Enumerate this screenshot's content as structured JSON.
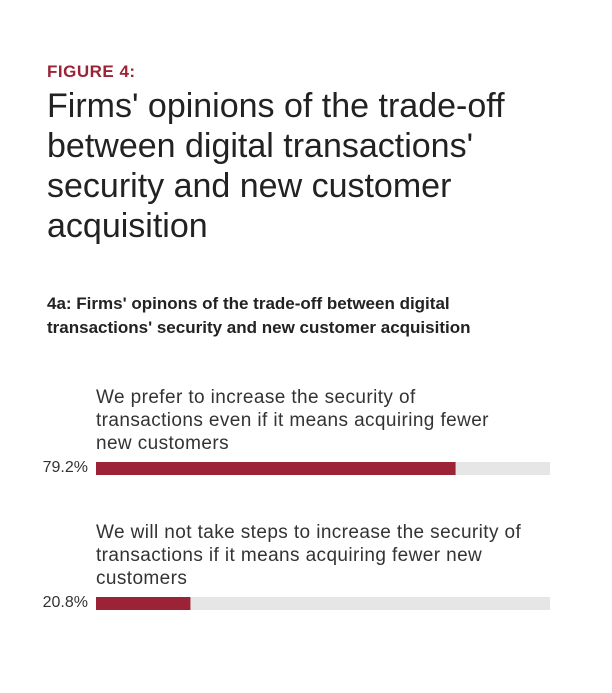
{
  "chart_data": {
    "type": "bar",
    "figure_label": "FIGURE 4:",
    "title": "Firms' opinions of the trade-off between digital transactions' security and new customer acquisition",
    "subtitle": "4a: Firms' opinons of the trade-off between digital transactions' security and new customer acquisition",
    "categories": [
      "We prefer to increase the security of transactions even if it means acquiring fewer new customers",
      "We will not take steps to increase the security of transactions if it means acquiring fewer new customers"
    ],
    "values": [
      79.2,
      20.8
    ],
    "value_labels": [
      "79.2%",
      "20.8%"
    ],
    "color": "#9b2335",
    "track_color": "#e6e6e6",
    "xlim": [
      0,
      100
    ]
  }
}
